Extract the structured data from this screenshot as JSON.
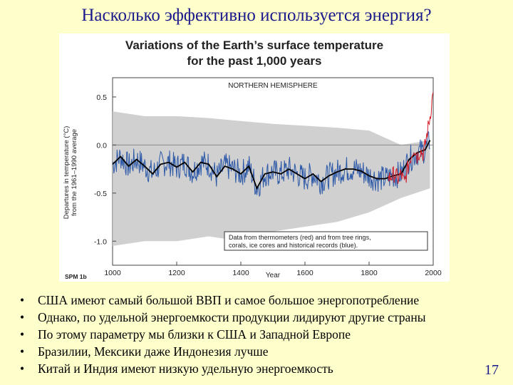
{
  "slide": {
    "title": "Насколько эффективно используется энергия?",
    "bullets": [
      "США имеют самый большой ВВП и самое большое энергопотребление",
      "Однако, по удельной энергоемкости продукции лидируют другие страны",
      "По этому параметру мы близки к США и Западной Европе",
      "Бразилии, Мексики даже Индонезия лучше",
      "Китай и Индия имеют низкую удельную энергоемкость"
    ],
    "bullet_glyph": "•",
    "page_number": "17"
  },
  "chart_data": {
    "type": "line",
    "title": "Variations of the Earth’s surface temperature",
    "subtitle": "for the past 1,000 years",
    "panel_label": "NORTHERN HEMISPHERE",
    "xlabel": "Year",
    "ylabel": "Departures in temperature (°C)",
    "ylabel2": "from the 1961–1990 average",
    "figure_code": "SPM 1b",
    "note_lines": [
      "Data from thermometers (red) and from tree rings,",
      "corals, ice cores and historical records (blue)."
    ],
    "xlim": [
      1000,
      2000
    ],
    "ylim": [
      -1.25,
      0.7
    ],
    "x_ticks": [
      1000,
      1200,
      1400,
      1600,
      1800,
      2000
    ],
    "y_ticks": [
      0.5,
      0.0,
      -0.5,
      -1.0
    ],
    "y_tick_labels": [
      "0.5",
      "0.0",
      "-0.5",
      "-1.0"
    ],
    "colors": {
      "proxy": "#2e5aa8",
      "thermometer": "#d4202a",
      "smoothed": "#000000",
      "uncertainty": "#c8c8c8",
      "zero_line": "#888888"
    },
    "series": [
      {
        "key": "smoothed",
        "x": [
          1000,
          1025,
          1050,
          1075,
          1100,
          1125,
          1150,
          1175,
          1200,
          1225,
          1250,
          1275,
          1300,
          1325,
          1350,
          1375,
          1400,
          1425,
          1450,
          1475,
          1500,
          1525,
          1550,
          1575,
          1600,
          1625,
          1650,
          1675,
          1700,
          1725,
          1750,
          1775,
          1800,
          1825,
          1850,
          1875,
          1900,
          1925,
          1950,
          1975,
          1990
        ],
        "y": [
          -0.2,
          -0.12,
          -0.22,
          -0.15,
          -0.22,
          -0.3,
          -0.2,
          -0.18,
          -0.23,
          -0.18,
          -0.28,
          -0.18,
          -0.2,
          -0.33,
          -0.22,
          -0.25,
          -0.3,
          -0.22,
          -0.45,
          -0.3,
          -0.28,
          -0.3,
          -0.25,
          -0.3,
          -0.35,
          -0.3,
          -0.38,
          -0.32,
          -0.28,
          -0.25,
          -0.25,
          -0.27,
          -0.32,
          -0.35,
          -0.35,
          -0.32,
          -0.3,
          -0.15,
          -0.08,
          -0.05,
          0.05
        ]
      },
      {
        "key": "thermometer",
        "x": [
          1860,
          1870,
          1880,
          1890,
          1900,
          1910,
          1920,
          1930,
          1940,
          1950,
          1960,
          1970,
          1980,
          1990,
          2000
        ],
        "y": [
          -0.35,
          -0.32,
          -0.3,
          -0.35,
          -0.3,
          -0.4,
          -0.25,
          -0.12,
          -0.02,
          -0.12,
          -0.05,
          -0.1,
          0.1,
          0.3,
          0.55
        ]
      },
      {
        "key": "uncertainty",
        "x": [
          1000,
          1100,
          1200,
          1300,
          1400,
          1500,
          1600,
          1700,
          1800,
          1900,
          1990
        ],
        "upper": [
          0.35,
          0.3,
          0.3,
          0.28,
          0.25,
          0.22,
          0.2,
          0.18,
          0.15,
          0.0,
          0.05
        ],
        "lower": [
          -1.05,
          -1.0,
          -1.0,
          -0.95,
          -1.0,
          -0.9,
          -0.85,
          -0.8,
          -0.7,
          -0.55,
          -0.45
        ]
      }
    ]
  }
}
